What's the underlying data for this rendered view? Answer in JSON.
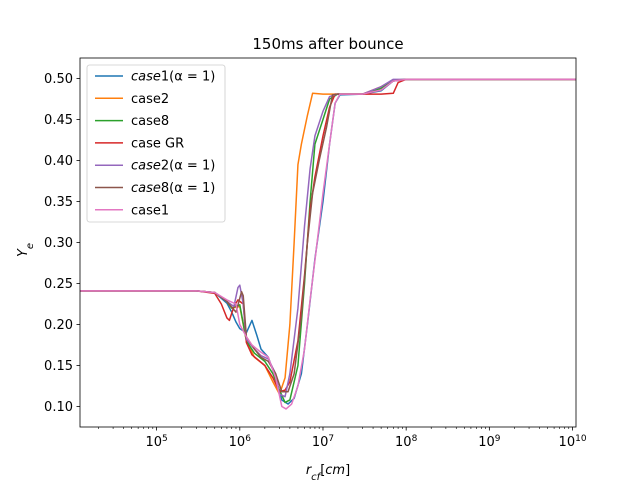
{
  "chart_data": {
    "type": "line",
    "title": "150ms after bounce",
    "xlabel": "r_cf[cm]",
    "ylabel": "Y_e",
    "xscale": "log",
    "xlim": [
      12000,
      11000000000
    ],
    "ylim": [
      0.075,
      0.525
    ],
    "yticks": [
      0.1,
      0.15,
      0.2,
      0.25,
      0.3,
      0.35,
      0.4,
      0.45,
      0.5
    ],
    "ytick_labels": [
      "0.10",
      "0.15",
      "0.20",
      "0.25",
      "0.30",
      "0.35",
      "0.40",
      "0.45",
      "0.50"
    ],
    "xticks": [
      100000,
      1000000,
      10000000,
      100000000,
      1000000000,
      10000000000
    ],
    "xtick_base": "10",
    "xtick_exponents": [
      "5",
      "6",
      "7",
      "8",
      "9",
      "10"
    ],
    "legend_position": "top-left",
    "grid": false,
    "series": [
      {
        "name": "case1(α = 1)",
        "name_italic": "case",
        "name_rest": "1(α = 1)",
        "color": "#1f77b4",
        "points": [
          [
            12000,
            0.241
          ],
          [
            300000,
            0.241
          ],
          [
            500000,
            0.239
          ],
          [
            700000,
            0.226
          ],
          [
            800000,
            0.215
          ],
          [
            900000,
            0.203
          ],
          [
            1000000,
            0.195
          ],
          [
            1200000,
            0.19
          ],
          [
            1400000,
            0.205
          ],
          [
            1600000,
            0.187
          ],
          [
            1800000,
            0.17
          ],
          [
            2200000,
            0.16
          ],
          [
            2700000,
            0.135
          ],
          [
            3200000,
            0.108
          ],
          [
            3800000,
            0.103
          ],
          [
            4500000,
            0.11
          ],
          [
            5500000,
            0.14
          ],
          [
            6500000,
            0.2
          ],
          [
            8000000,
            0.28
          ],
          [
            10000000,
            0.35
          ],
          [
            12000000,
            0.42
          ],
          [
            14000000,
            0.47
          ],
          [
            16000000,
            0.48
          ],
          [
            30000000,
            0.481
          ],
          [
            50000000,
            0.485
          ],
          [
            70000000,
            0.497
          ],
          [
            100000000,
            0.499
          ],
          [
            1000000000,
            0.499
          ],
          [
            11000000000,
            0.499
          ]
        ]
      },
      {
        "name": "case2",
        "color": "#ff7f0e",
        "points": [
          [
            12000,
            0.241
          ],
          [
            300000,
            0.241
          ],
          [
            500000,
            0.239
          ],
          [
            700000,
            0.228
          ],
          [
            800000,
            0.22
          ],
          [
            1000000,
            0.222
          ],
          [
            1200000,
            0.18
          ],
          [
            1500000,
            0.16
          ],
          [
            2000000,
            0.15
          ],
          [
            2500000,
            0.13
          ],
          [
            3000000,
            0.115
          ],
          [
            3500000,
            0.135
          ],
          [
            4000000,
            0.2
          ],
          [
            4500000,
            0.3
          ],
          [
            5000000,
            0.395
          ],
          [
            5500000,
            0.42
          ],
          [
            6500000,
            0.455
          ],
          [
            7500000,
            0.482
          ],
          [
            10000000,
            0.481
          ],
          [
            30000000,
            0.481
          ],
          [
            50000000,
            0.49
          ],
          [
            70000000,
            0.498
          ],
          [
            100000000,
            0.499
          ],
          [
            1000000000,
            0.499
          ],
          [
            11000000000,
            0.499
          ]
        ]
      },
      {
        "name": "case8",
        "color": "#2ca02c",
        "points": [
          [
            12000,
            0.241
          ],
          [
            300000,
            0.241
          ],
          [
            500000,
            0.239
          ],
          [
            700000,
            0.228
          ],
          [
            800000,
            0.22
          ],
          [
            1000000,
            0.224
          ],
          [
            1200000,
            0.18
          ],
          [
            1500000,
            0.165
          ],
          [
            2000000,
            0.155
          ],
          [
            2500000,
            0.14
          ],
          [
            3000000,
            0.12
          ],
          [
            3500000,
            0.105
          ],
          [
            4000000,
            0.108
          ],
          [
            5000000,
            0.15
          ],
          [
            6000000,
            0.25
          ],
          [
            7000000,
            0.35
          ],
          [
            8000000,
            0.42
          ],
          [
            10000000,
            0.45
          ],
          [
            12000000,
            0.475
          ],
          [
            15000000,
            0.481
          ],
          [
            30000000,
            0.481
          ],
          [
            50000000,
            0.488
          ],
          [
            70000000,
            0.498
          ],
          [
            100000000,
            0.499
          ],
          [
            1000000000,
            0.499
          ],
          [
            11000000000,
            0.499
          ]
        ]
      },
      {
        "name": "case GR",
        "color": "#d62728",
        "points": [
          [
            12000,
            0.241
          ],
          [
            300000,
            0.241
          ],
          [
            500000,
            0.238
          ],
          [
            600000,
            0.225
          ],
          [
            700000,
            0.208
          ],
          [
            750000,
            0.205
          ],
          [
            850000,
            0.222
          ],
          [
            950000,
            0.23
          ],
          [
            1100000,
            0.225
          ],
          [
            1200000,
            0.178
          ],
          [
            1400000,
            0.163
          ],
          [
            2000000,
            0.15
          ],
          [
            2500000,
            0.135
          ],
          [
            3000000,
            0.118
          ],
          [
            3500000,
            0.12
          ],
          [
            4000000,
            0.13
          ],
          [
            5000000,
            0.18
          ],
          [
            6000000,
            0.26
          ],
          [
            7000000,
            0.34
          ],
          [
            8000000,
            0.38
          ],
          [
            10000000,
            0.43
          ],
          [
            12000000,
            0.465
          ],
          [
            14000000,
            0.481
          ],
          [
            30000000,
            0.481
          ],
          [
            50000000,
            0.481
          ],
          [
            70000000,
            0.482
          ],
          [
            80000000,
            0.495
          ],
          [
            100000000,
            0.499
          ],
          [
            1000000000,
            0.499
          ],
          [
            11000000000,
            0.499
          ]
        ]
      },
      {
        "name": "case2(α = 1)",
        "name_italic": "case",
        "name_rest": "2(α = 1)",
        "color": "#9467bd",
        "points": [
          [
            12000,
            0.241
          ],
          [
            300000,
            0.241
          ],
          [
            500000,
            0.239
          ],
          [
            700000,
            0.228
          ],
          [
            850000,
            0.222
          ],
          [
            950000,
            0.245
          ],
          [
            1000000,
            0.248
          ],
          [
            1100000,
            0.225
          ],
          [
            1200000,
            0.182
          ],
          [
            1500000,
            0.17
          ],
          [
            1800000,
            0.162
          ],
          [
            2200000,
            0.158
          ],
          [
            2700000,
            0.14
          ],
          [
            3000000,
            0.115
          ],
          [
            3500000,
            0.112
          ],
          [
            4000000,
            0.14
          ],
          [
            5000000,
            0.22
          ],
          [
            6000000,
            0.32
          ],
          [
            7000000,
            0.39
          ],
          [
            8000000,
            0.43
          ],
          [
            10000000,
            0.46
          ],
          [
            12000000,
            0.478
          ],
          [
            15000000,
            0.481
          ],
          [
            30000000,
            0.481
          ],
          [
            50000000,
            0.49
          ],
          [
            70000000,
            0.499
          ],
          [
            1000000000,
            0.499
          ],
          [
            11000000000,
            0.499
          ]
        ]
      },
      {
        "name": "case8(α = 1)",
        "name_italic": "case",
        "name_rest": "8(α = 1)",
        "color": "#8c564b",
        "points": [
          [
            12000,
            0.241
          ],
          [
            300000,
            0.241
          ],
          [
            500000,
            0.239
          ],
          [
            700000,
            0.228
          ],
          [
            900000,
            0.215
          ],
          [
            1050000,
            0.24
          ],
          [
            1100000,
            0.235
          ],
          [
            1200000,
            0.185
          ],
          [
            1500000,
            0.17
          ],
          [
            1800000,
            0.16
          ],
          [
            2200000,
            0.155
          ],
          [
            2700000,
            0.14
          ],
          [
            3200000,
            0.118
          ],
          [
            3800000,
            0.118
          ],
          [
            4500000,
            0.14
          ],
          [
            5500000,
            0.21
          ],
          [
            6500000,
            0.3
          ],
          [
            7500000,
            0.36
          ],
          [
            9000000,
            0.4
          ],
          [
            11000000,
            0.44
          ],
          [
            13000000,
            0.48
          ],
          [
            15000000,
            0.481
          ],
          [
            30000000,
            0.481
          ],
          [
            50000000,
            0.486
          ],
          [
            70000000,
            0.497
          ],
          [
            100000000,
            0.499
          ],
          [
            1000000000,
            0.499
          ],
          [
            11000000000,
            0.499
          ]
        ]
      },
      {
        "name": "case1",
        "color": "#e377c2",
        "points": [
          [
            12000,
            0.241
          ],
          [
            300000,
            0.241
          ],
          [
            500000,
            0.239
          ],
          [
            700000,
            0.23
          ],
          [
            900000,
            0.225
          ],
          [
            1000000,
            0.2
          ],
          [
            1200000,
            0.185
          ],
          [
            1400000,
            0.175
          ],
          [
            1700000,
            0.168
          ],
          [
            2200000,
            0.16
          ],
          [
            2700000,
            0.135
          ],
          [
            3200000,
            0.1
          ],
          [
            3600000,
            0.097
          ],
          [
            4200000,
            0.103
          ],
          [
            5000000,
            0.125
          ],
          [
            6000000,
            0.17
          ],
          [
            7000000,
            0.23
          ],
          [
            8500000,
            0.3
          ],
          [
            10000000,
            0.36
          ],
          [
            12000000,
            0.42
          ],
          [
            14000000,
            0.47
          ],
          [
            16000000,
            0.481
          ],
          [
            30000000,
            0.481
          ],
          [
            50000000,
            0.486
          ],
          [
            70000000,
            0.497
          ],
          [
            100000000,
            0.499
          ],
          [
            1000000000,
            0.499
          ],
          [
            11000000000,
            0.499
          ]
        ]
      }
    ]
  }
}
